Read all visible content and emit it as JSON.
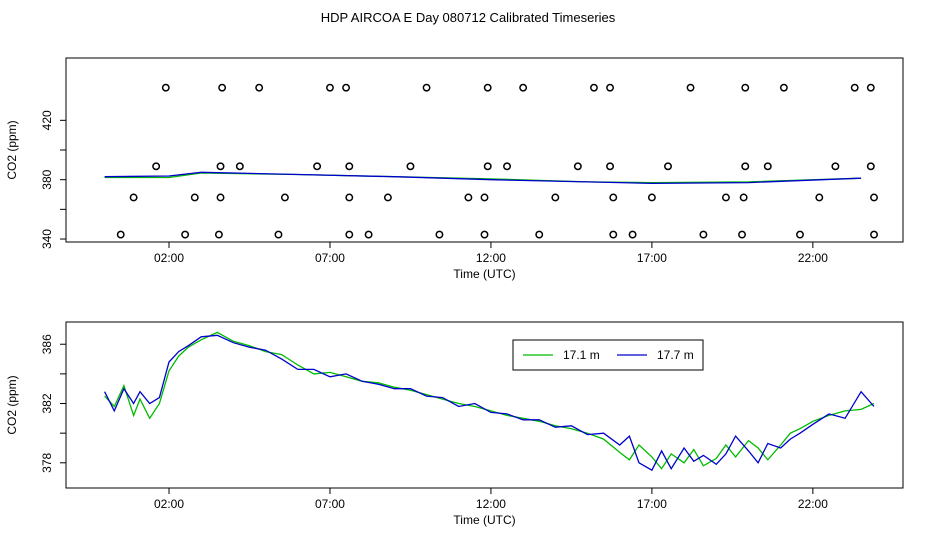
{
  "title": "HDP AIRCOA E  Day 080712  Calibrated Timeseries",
  "colors": {
    "series_1": "#00bb00",
    "series_2": "#0000cc",
    "markers": "#000000"
  },
  "chart_data": [
    {
      "type": "line",
      "panel": "top",
      "title": "",
      "xlabel": "Time (UTC)",
      "ylabel": "CO2 (ppm)",
      "xlim": [
        -1.2,
        24.8
      ],
      "ylim": [
        338,
        462
      ],
      "xticks": [
        2,
        7,
        12,
        17,
        22
      ],
      "xtick_labels": [
        "02:00",
        "07:00",
        "12:00",
        "17:00",
        "22:00"
      ],
      "yticks": [
        340,
        360,
        380,
        400,
        420
      ],
      "ytick_labels": [
        "340",
        "",
        "380",
        "",
        "420"
      ],
      "grid": false,
      "series": [
        {
          "x": [
            0,
            2,
            3,
            6,
            9,
            12,
            15,
            17,
            20,
            23.5
          ],
          "y": [
            381.5,
            381.5,
            384.5,
            383.5,
            382,
            380.5,
            378.5,
            378,
            378.5,
            381
          ]
        },
        {
          "x": [
            0,
            2,
            3,
            6,
            9,
            12,
            15,
            17,
            20,
            23.5
          ],
          "y": [
            382,
            382.5,
            385,
            383.5,
            382,
            380,
            378.5,
            377.5,
            378,
            381
          ]
        }
      ],
      "markers": {
        "style": "open-circle",
        "row_442": [
          1.9,
          3.65,
          4.8,
          7,
          7.5,
          10,
          11.9,
          13,
          15.2,
          15.7,
          18.2,
          19.9,
          21.1,
          23.3,
          23.8
        ],
        "row_389": [
          1.6,
          3.6,
          4.2,
          6.6,
          7.6,
          9.5,
          11.9,
          12.5,
          14.7,
          15.7,
          17.5,
          19.9,
          20.6,
          22.7,
          23.8
        ],
        "row_368": [
          0.9,
          2.8,
          3.6,
          5.6,
          7.6,
          8.8,
          11.3,
          11.8,
          14,
          15.8,
          17,
          19.3,
          19.85,
          22.2,
          23.9
        ],
        "row_343": [
          0.5,
          2.5,
          3.55,
          5.4,
          7.6,
          8.2,
          10.4,
          11.8,
          13.5,
          15.8,
          16.4,
          18.6,
          19.8,
          21.6,
          23.9
        ]
      }
    },
    {
      "type": "line",
      "panel": "bottom",
      "title": "",
      "xlabel": "Time (UTC)",
      "ylabel": "CO2 (ppm)",
      "xlim": [
        -1.2,
        24.8
      ],
      "ylim": [
        376.3,
        387.5
      ],
      "xticks": [
        2,
        7,
        12,
        17,
        22
      ],
      "xtick_labels": [
        "02:00",
        "07:00",
        "12:00",
        "17:00",
        "22:00"
      ],
      "yticks": [
        378,
        380,
        382,
        384,
        386
      ],
      "ytick_labels": [
        "378",
        "",
        "382",
        "",
        "386"
      ],
      "grid": false,
      "legend": "top-right",
      "series": [
        {
          "name": "17.1 m",
          "x": [
            0,
            0.3,
            0.6,
            0.9,
            1.1,
            1.4,
            1.7,
            2.0,
            2.3,
            2.6,
            3.0,
            3.5,
            4.0,
            4.5,
            5.0,
            5.5,
            6.0,
            6.5,
            7.0,
            7.5,
            8.0,
            8.5,
            9.0,
            9.5,
            10.0,
            10.5,
            11.0,
            11.5,
            12.0,
            12.5,
            13.0,
            13.5,
            14.0,
            14.5,
            15.0,
            15.5,
            16.0,
            16.3,
            16.6,
            17.0,
            17.3,
            17.6,
            18.0,
            18.3,
            18.6,
            19.0,
            19.3,
            19.6,
            20.0,
            20.3,
            20.6,
            21.0,
            21.3,
            21.6,
            22.0,
            22.5,
            23.0,
            23.5,
            23.9
          ],
          "y": [
            382.5,
            381.8,
            383.2,
            381.2,
            382.3,
            381.0,
            382.0,
            384.2,
            385.2,
            385.8,
            386.3,
            386.8,
            386.2,
            385.9,
            385.5,
            385.3,
            384.6,
            384.0,
            384.1,
            383.8,
            383.5,
            383.4,
            383.1,
            382.9,
            382.6,
            382.3,
            382.0,
            381.8,
            381.5,
            381.2,
            381.0,
            380.8,
            380.5,
            380.3,
            380.0,
            379.6,
            378.7,
            378.2,
            379.2,
            378.4,
            377.6,
            378.6,
            378.0,
            378.9,
            377.8,
            378.3,
            379.2,
            378.4,
            379.5,
            379.0,
            378.2,
            379.2,
            380.0,
            380.3,
            380.8,
            381.2,
            381.5,
            381.6,
            382.0
          ]
        },
        {
          "name": "17.7 m",
          "x": [
            0,
            0.3,
            0.6,
            0.9,
            1.1,
            1.4,
            1.7,
            2.0,
            2.3,
            2.6,
            3.0,
            3.5,
            4.0,
            4.5,
            5.0,
            5.5,
            6.0,
            6.5,
            7.0,
            7.5,
            8.0,
            8.5,
            9.0,
            9.5,
            10.0,
            10.5,
            11.0,
            11.5,
            12.0,
            12.5,
            13.0,
            13.5,
            14.0,
            14.5,
            15.0,
            15.5,
            16.0,
            16.3,
            16.6,
            17.0,
            17.3,
            17.6,
            18.0,
            18.3,
            18.6,
            19.0,
            19.3,
            19.6,
            20.0,
            20.3,
            20.6,
            21.0,
            21.3,
            21.6,
            22.0,
            22.5,
            23.0,
            23.5,
            23.9
          ],
          "y": [
            382.8,
            381.5,
            383.0,
            382.0,
            382.8,
            382.0,
            382.4,
            384.8,
            385.5,
            385.9,
            386.5,
            386.6,
            386.1,
            385.8,
            385.6,
            385.0,
            384.3,
            384.3,
            383.8,
            384.0,
            383.5,
            383.3,
            383.0,
            383.0,
            382.5,
            382.4,
            381.8,
            382.0,
            381.4,
            381.3,
            380.9,
            380.9,
            380.4,
            380.5,
            379.9,
            380.0,
            379.2,
            379.8,
            378.0,
            377.5,
            378.8,
            377.6,
            379.0,
            378.1,
            378.5,
            377.9,
            378.6,
            379.8,
            378.8,
            378.0,
            379.3,
            379.0,
            379.6,
            380.0,
            380.6,
            381.3,
            381.0,
            382.8,
            381.8
          ]
        }
      ]
    }
  ]
}
